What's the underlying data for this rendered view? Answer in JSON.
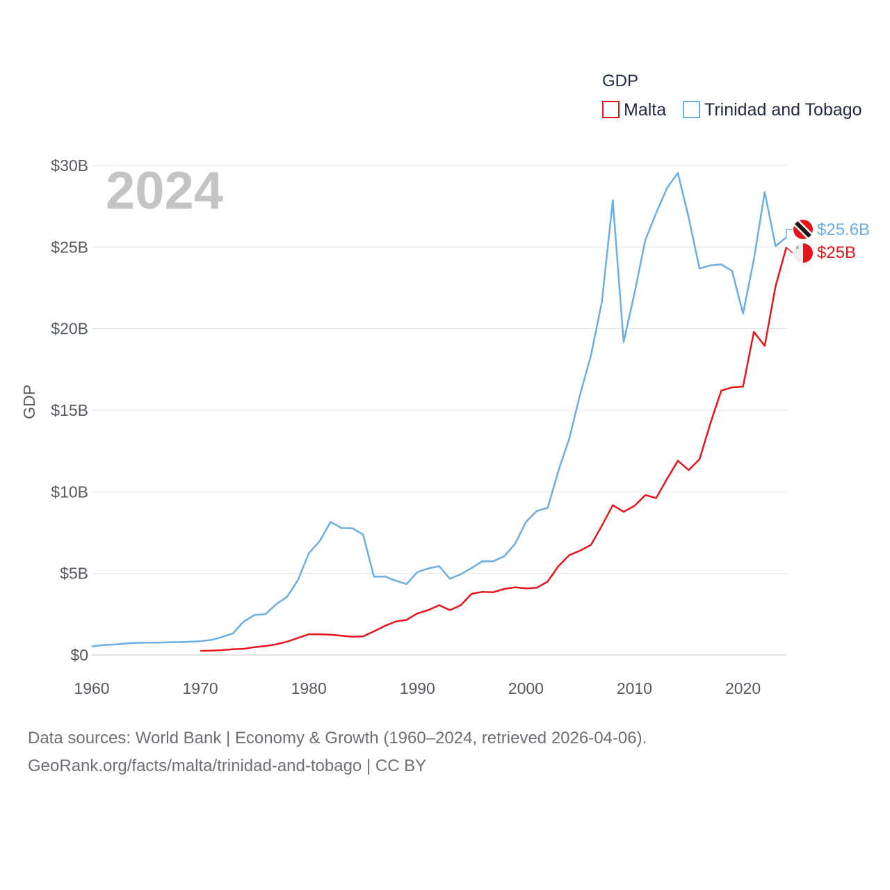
{
  "chart_data": {
    "type": "line",
    "title": "GDP",
    "year_label": "2024",
    "ylabel": "GDP",
    "xlabel": "",
    "xlim": [
      1960,
      2024
    ],
    "ylim": [
      0,
      30
    ],
    "x_ticks": [
      1960,
      1970,
      1980,
      1990,
      2000,
      2010,
      2020
    ],
    "x_tick_labels": [
      "1960",
      "1970",
      "1980",
      "1990",
      "2000",
      "2010",
      "2020"
    ],
    "y_ticks": [
      0,
      5,
      10,
      15,
      20,
      25,
      30
    ],
    "y_tick_labels": [
      "$0",
      "$5B",
      "$10B",
      "$15B",
      "$20B",
      "$25B",
      "$30B"
    ],
    "legend_position": "top-right",
    "series": [
      {
        "name": "Malta",
        "color": "#e8141c",
        "end_label": "$25B",
        "x": [
          1970,
          1971,
          1972,
          1973,
          1974,
          1975,
          1976,
          1977,
          1978,
          1979,
          1980,
          1981,
          1982,
          1983,
          1984,
          1985,
          1986,
          1987,
          1988,
          1989,
          1990,
          1991,
          1992,
          1993,
          1994,
          1995,
          1996,
          1997,
          1998,
          1999,
          2000,
          2001,
          2002,
          2003,
          2004,
          2005,
          2006,
          2007,
          2008,
          2009,
          2010,
          2011,
          2012,
          2013,
          2014,
          2015,
          2016,
          2017,
          2018,
          2019,
          2020,
          2021,
          2022,
          2023,
          2024
        ],
        "values": [
          0.25,
          0.27,
          0.3,
          0.35,
          0.38,
          0.48,
          0.55,
          0.65,
          0.82,
          1.05,
          1.27,
          1.27,
          1.25,
          1.18,
          1.12,
          1.14,
          1.45,
          1.78,
          2.05,
          2.15,
          2.55,
          2.75,
          3.05,
          2.75,
          3.05,
          3.75,
          3.87,
          3.85,
          4.05,
          4.15,
          4.08,
          4.12,
          4.5,
          5.45,
          6.12,
          6.4,
          6.75,
          7.92,
          9.18,
          8.78,
          9.14,
          9.8,
          9.62,
          10.79,
          11.9,
          11.33,
          12.0,
          14.2,
          16.2,
          16.4,
          16.45,
          19.8,
          18.95,
          22.6,
          25.0
        ]
      },
      {
        "name": "Trinidad and Tobago",
        "color": "#6aaee4",
        "end_label": "$25.6B",
        "x": [
          1960,
          1961,
          1962,
          1963,
          1964,
          1965,
          1966,
          1967,
          1968,
          1969,
          1970,
          1971,
          1972,
          1973,
          1974,
          1975,
          1976,
          1977,
          1978,
          1979,
          1980,
          1981,
          1982,
          1983,
          1984,
          1985,
          1986,
          1987,
          1988,
          1989,
          1990,
          1991,
          1992,
          1993,
          1994,
          1995,
          1996,
          1997,
          1998,
          1999,
          2000,
          2001,
          2002,
          2003,
          2004,
          2005,
          2006,
          2007,
          2008,
          2009,
          2010,
          2011,
          2012,
          2013,
          2014,
          2015,
          2016,
          2017,
          2018,
          2019,
          2020,
          2021,
          2022,
          2023,
          2024
        ],
        "values": [
          0.53,
          0.6,
          0.64,
          0.7,
          0.74,
          0.76,
          0.76,
          0.78,
          0.79,
          0.81,
          0.85,
          0.92,
          1.1,
          1.32,
          2.05,
          2.45,
          2.5,
          3.12,
          3.57,
          4.6,
          6.24,
          6.98,
          8.15,
          7.78,
          7.77,
          7.38,
          4.8,
          4.81,
          4.55,
          4.35,
          5.08,
          5.3,
          5.44,
          4.67,
          4.95,
          5.33,
          5.75,
          5.74,
          6.05,
          6.81,
          8.15,
          8.83,
          9.01,
          11.3,
          13.28,
          15.98,
          18.37,
          21.64,
          27.87,
          19.17,
          22.16,
          25.43,
          27.09,
          28.62,
          29.54,
          26.8,
          23.68,
          23.88,
          23.94,
          23.53,
          20.92,
          24.23,
          28.37,
          25.06,
          25.6
        ]
      }
    ]
  },
  "footer": {
    "line1": "Data sources: World Bank | Economy & Growth (1960–2024, retrieved 2026-04-06).",
    "line2": "GeoRank.org/facts/malta/trinidad-and-tobago | CC BY"
  }
}
